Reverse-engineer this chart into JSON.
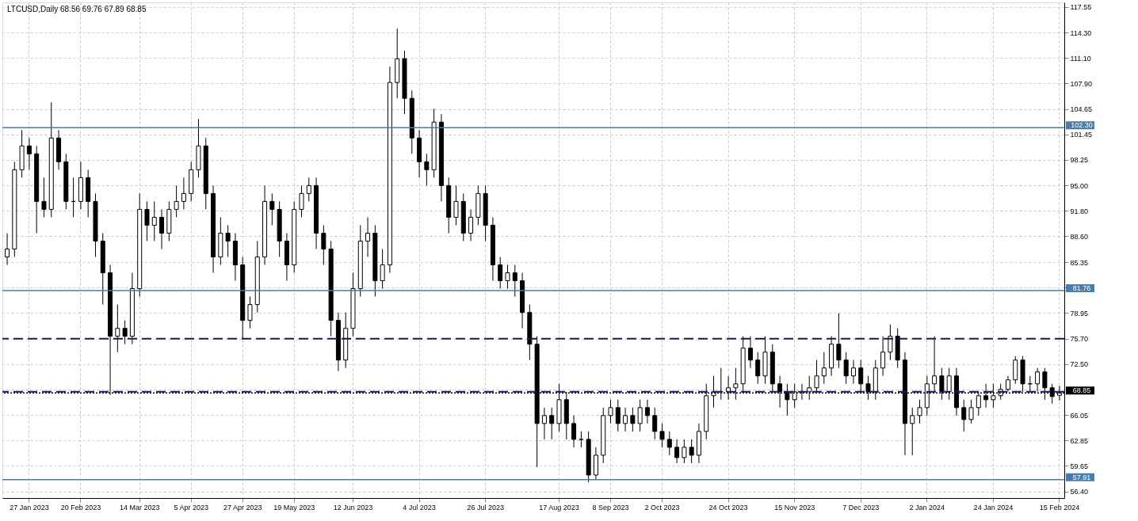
{
  "chart_data": {
    "type": "candlestick",
    "title": "LTCUSD,Daily  68.56 69.76 67.89 68.85",
    "categories": [
      null,
      null,
      null,
      "27 Jan 2023",
      null,
      null,
      null,
      null,
      null,
      null,
      "20 Feb 2023",
      null,
      null,
      null,
      null,
      null,
      null,
      null,
      "14 Mar 2023",
      null,
      null,
      null,
      null,
      null,
      null,
      "5 Apr 2023",
      null,
      null,
      null,
      null,
      null,
      null,
      "27 Apr 2023",
      null,
      null,
      null,
      null,
      null,
      null,
      "19 May 2023",
      null,
      null,
      null,
      null,
      null,
      null,
      null,
      "12 Jun 2023",
      null,
      null,
      null,
      null,
      null,
      null,
      null,
      null,
      "4 Jul 2023",
      null,
      null,
      null,
      null,
      null,
      null,
      null,
      null,
      "26 Jul 2023",
      null,
      null,
      null,
      null,
      null,
      null,
      null,
      null,
      null,
      "17 Aug 2023",
      null,
      null,
      null,
      null,
      null,
      null,
      "8 Sep 2023",
      null,
      null,
      null,
      null,
      null,
      null,
      "2 Oct 2023",
      null,
      null,
      null,
      null,
      null,
      null,
      null,
      null,
      "24 Oct 2023",
      null,
      null,
      null,
      null,
      null,
      null,
      null,
      null,
      "15 Nov 2023",
      null,
      null,
      null,
      null,
      null,
      null,
      null,
      null,
      "7 Dec 2023",
      null,
      null,
      null,
      null,
      null,
      null,
      null,
      null,
      "2 Jan 2024",
      null,
      null,
      null,
      null,
      null,
      null,
      null,
      null,
      "24 Jan 2024",
      null,
      null,
      null,
      null,
      null,
      null,
      null,
      null,
      "15 Feb 2024"
    ],
    "ohlc": [
      [
        86,
        89,
        85,
        87
      ],
      [
        87,
        98,
        86,
        97
      ],
      [
        97,
        102,
        96,
        100
      ],
      [
        100,
        101,
        97,
        99
      ],
      [
        99,
        100,
        89,
        93
      ],
      [
        93,
        96,
        91,
        92
      ],
      [
        92,
        105.5,
        91,
        101
      ],
      [
        101,
        102,
        97,
        98
      ],
      [
        98,
        99,
        92,
        93
      ],
      [
        93,
        96,
        91,
        93
      ],
      [
        93,
        98,
        92,
        96
      ],
      [
        96,
        97,
        91,
        93
      ],
      [
        93,
        94,
        86,
        88
      ],
      [
        88,
        89,
        80,
        84
      ],
      [
        84,
        85,
        68.6,
        76
      ],
      [
        76,
        80,
        74,
        77
      ],
      [
        77,
        78,
        75,
        76
      ],
      [
        76,
        84,
        75,
        82
      ],
      [
        82,
        94,
        81,
        92
      ],
      [
        92,
        93,
        88,
        90
      ],
      [
        90,
        93,
        88,
        91
      ],
      [
        91,
        92,
        87,
        89
      ],
      [
        89,
        93,
        88,
        92
      ],
      [
        92,
        95,
        91,
        93
      ],
      [
        93,
        96,
        92,
        94
      ],
      [
        94,
        98,
        93,
        97
      ],
      [
        97,
        103.4,
        96,
        100
      ],
      [
        100,
        101,
        92,
        94
      ],
      [
        94,
        95,
        84,
        86
      ],
      [
        86,
        91,
        85,
        89
      ],
      [
        89,
        90,
        86,
        88
      ],
      [
        88,
        89,
        83,
        85
      ],
      [
        85,
        86,
        75.6,
        78
      ],
      [
        78,
        81,
        77,
        80
      ],
      [
        80,
        88,
        79,
        86
      ],
      [
        86,
        95,
        85,
        93
      ],
      [
        93,
        94,
        90,
        92
      ],
      [
        92,
        93,
        86,
        88
      ],
      [
        88,
        89,
        83,
        85
      ],
      [
        85,
        93,
        84,
        92
      ],
      [
        92,
        95,
        91,
        94
      ],
      [
        94,
        96,
        93,
        95
      ],
      [
        95,
        96,
        87,
        89
      ],
      [
        89,
        90,
        85,
        87
      ],
      [
        87,
        88,
        76,
        78
      ],
      [
        78,
        79,
        71.6,
        73
      ],
      [
        73,
        79,
        72,
        77
      ],
      [
        77,
        84,
        76,
        82
      ],
      [
        82,
        90,
        81,
        88
      ],
      [
        88,
        91,
        86,
        89
      ],
      [
        89,
        90,
        81,
        83
      ],
      [
        83,
        87,
        82,
        85
      ],
      [
        85,
        110,
        84,
        108
      ],
      [
        108,
        114.8,
        106,
        111
      ],
      [
        111,
        112,
        104,
        106
      ],
      [
        106,
        107,
        99,
        101
      ],
      [
        101,
        102,
        96,
        98
      ],
      [
        98,
        99,
        95,
        97
      ],
      [
        97,
        104.7,
        96,
        103
      ],
      [
        103,
        104,
        93,
        95
      ],
      [
        95,
        96,
        89,
        91
      ],
      [
        91,
        95,
        90,
        93
      ],
      [
        93,
        94,
        88,
        89
      ],
      [
        89,
        92,
        88,
        91
      ],
      [
        91,
        95,
        90,
        94
      ],
      [
        94,
        95,
        88,
        90
      ],
      [
        90,
        91,
        83,
        85
      ],
      [
        85,
        86,
        82,
        83
      ],
      [
        83,
        85,
        82,
        84
      ],
      [
        84,
        85,
        81,
        83
      ],
      [
        83,
        84,
        77,
        79
      ],
      [
        79,
        80,
        73,
        75
      ],
      [
        75,
        76,
        59.5,
        65
      ],
      [
        65,
        67,
        63,
        66
      ],
      [
        66,
        67,
        63,
        65
      ],
      [
        65,
        70,
        64,
        68
      ],
      [
        68,
        69,
        63,
        65
      ],
      [
        65,
        66,
        62,
        63
      ],
      [
        63,
        64,
        62,
        63
      ],
      [
        63,
        64,
        57.6,
        58.5
      ],
      [
        58.5,
        62,
        58,
        61
      ],
      [
        61,
        67,
        60,
        66
      ],
      [
        66,
        68,
        65,
        67
      ],
      [
        67,
        68,
        64,
        65
      ],
      [
        65,
        67,
        64,
        66
      ],
      [
        66,
        67,
        64,
        65
      ],
      [
        65,
        68,
        64,
        67
      ],
      [
        67,
        68,
        65,
        66
      ],
      [
        66,
        67,
        63,
        64
      ],
      [
        64,
        65,
        62,
        63
      ],
      [
        63,
        64,
        61,
        62
      ],
      [
        62,
        63,
        60,
        60.7
      ],
      [
        60.7,
        63,
        60,
        62
      ],
      [
        62,
        63,
        60,
        61
      ],
      [
        61,
        65,
        60,
        64
      ],
      [
        64,
        70,
        63,
        68.5
      ],
      [
        68.5,
        71,
        67,
        69
      ],
      [
        69,
        72,
        68,
        69
      ],
      [
        69,
        71,
        68,
        69.5
      ],
      [
        69.5,
        72,
        68,
        70
      ],
      [
        70,
        76,
        69,
        74.5
      ],
      [
        74.5,
        76,
        72,
        73
      ],
      [
        73,
        74,
        70,
        71
      ],
      [
        71,
        76,
        70,
        74
      ],
      [
        74,
        75,
        69,
        70
      ],
      [
        70,
        71,
        67,
        69
      ],
      [
        69,
        70,
        66,
        68
      ],
      [
        68,
        70,
        67,
        69
      ],
      [
        69,
        70,
        68,
        69
      ],
      [
        69,
        71,
        68,
        69.5
      ],
      [
        69.5,
        73,
        69,
        71
      ],
      [
        71,
        74,
        70,
        72
      ],
      [
        72,
        76,
        71,
        75
      ],
      [
        75,
        78.9,
        72,
        73
      ],
      [
        73,
        74,
        70,
        71
      ],
      [
        71,
        73,
        70,
        72
      ],
      [
        72,
        73,
        69,
        70
      ],
      [
        70,
        71,
        68,
        69
      ],
      [
        69,
        73,
        68,
        72
      ],
      [
        72,
        76,
        71,
        74
      ],
      [
        74,
        77.5,
        73,
        76
      ],
      [
        76,
        77,
        72,
        73
      ],
      [
        73,
        74,
        61,
        65
      ],
      [
        65,
        67,
        61,
        66
      ],
      [
        66,
        68,
        65,
        67
      ],
      [
        67,
        71,
        66,
        70
      ],
      [
        70,
        76,
        69,
        71
      ],
      [
        71,
        72,
        68,
        69
      ],
      [
        69,
        72,
        68,
        71
      ],
      [
        71,
        72,
        66,
        67
      ],
      [
        67,
        68,
        64,
        65.5
      ],
      [
        65.5,
        68,
        65,
        67
      ],
      [
        67,
        69,
        66,
        68.5
      ],
      [
        68.5,
        70,
        67,
        68
      ],
      [
        68,
        70,
        67,
        68.5
      ],
      [
        68.5,
        70,
        68,
        69.3
      ],
      [
        69.3,
        71,
        69,
        70.5
      ],
      [
        70.5,
        73.5,
        70,
        73
      ],
      [
        73,
        73.5,
        69,
        70
      ],
      [
        70,
        71,
        69,
        70
      ],
      [
        70,
        72,
        69,
        71.5
      ],
      [
        71.5,
        72,
        68,
        69.5
      ],
      [
        69.5,
        70,
        67.5,
        68.4
      ],
      [
        68.56,
        69.76,
        67.89,
        68.85
      ]
    ],
    "ylim": [
      55.6,
      118.1
    ],
    "yticks": [
      {
        "value": 117.55,
        "label": "117.55"
      },
      {
        "value": 114.3,
        "label": "114.30"
      },
      {
        "value": 111.1,
        "label": "111.10"
      },
      {
        "value": 107.9,
        "label": "107.90"
      },
      {
        "value": 104.65,
        "label": "104.65"
      },
      {
        "value": 101.45,
        "label": "101.45"
      },
      {
        "value": 98.25,
        "label": "98.25"
      },
      {
        "value": 95.0,
        "label": "95.00"
      },
      {
        "value": 91.8,
        "label": "91.80"
      },
      {
        "value": 88.6,
        "label": "88.60"
      },
      {
        "value": 85.35,
        "label": "85.35"
      },
      {
        "value": 82.15,
        "label": null
      },
      {
        "value": 78.95,
        "label": "78.95"
      },
      {
        "value": 75.7,
        "label": "75.70"
      },
      {
        "value": 72.5,
        "label": "72.50"
      },
      {
        "value": 69.3,
        "label": null
      },
      {
        "value": 66.05,
        "label": "66.05"
      },
      {
        "value": 62.85,
        "label": "62.85"
      },
      {
        "value": 59.65,
        "label": "59.65"
      },
      {
        "value": 56.4,
        "label": "56.40"
      }
    ],
    "ref_lines": [
      {
        "axis": "y",
        "value": 102.3,
        "label": "102.30",
        "color": "#4a7ca8",
        "line_style": "solid"
      },
      {
        "axis": "y",
        "value": 81.76,
        "label": "81.76",
        "color": "#4a7ca8",
        "line_style": "solid"
      },
      {
        "axis": "y",
        "value": 57.91,
        "label": "57.91",
        "color": "#4a7ca8",
        "line_style": "solid"
      },
      {
        "axis": "y",
        "value": 68.85,
        "label": "68.85",
        "color": "#000000",
        "line_style": "dotted"
      },
      {
        "axis": "y",
        "value": 75.7,
        "color": "#1a1a5e",
        "line_style": "dashed"
      },
      {
        "axis": "y",
        "value": 69.0,
        "color": "#1a1a5e",
        "line_style": "dashed"
      }
    ],
    "grid": true
  }
}
